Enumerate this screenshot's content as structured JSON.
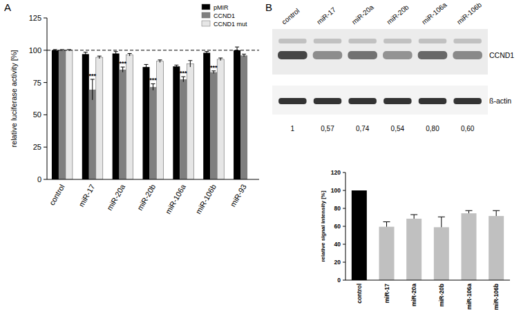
{
  "panels": [
    "A",
    "B"
  ],
  "chart_data": [
    {
      "type": "bar",
      "y_label": "relative luciferase activity [%]",
      "categories": [
        "control",
        "miR-17",
        "miR-20a",
        "miR-20b",
        "miR-106a",
        "miR-106b",
        "miR-93"
      ],
      "series": [
        {
          "name": "pMIR",
          "color": "#000000",
          "values": [
            100,
            97,
            97.5,
            87,
            87.5,
            98,
            100
          ],
          "errors": [
            0.5,
            1.5,
            1.5,
            2,
            1,
            1,
            2.5
          ]
        },
        {
          "name": "CCND1",
          "color": "#7f7f7f",
          "values": [
            100,
            69.5,
            85,
            71.5,
            77.5,
            83,
            96
          ],
          "errors": [
            0.5,
            8,
            2,
            2.5,
            2,
            1,
            1
          ],
          "annotations": [
            null,
            "***",
            "***",
            "***",
            "***",
            "***",
            null
          ]
        },
        {
          "name": "CCND1 mut",
          "color": "#e6e6e6",
          "values": [
            100,
            94.5,
            96.5,
            91.5,
            89.5,
            93,
            null
          ],
          "errors": [
            0.5,
            1,
            1,
            1,
            2.5,
            1,
            null
          ]
        }
      ],
      "ylim": [
        0,
        125
      ],
      "yticks": [
        0,
        25,
        50,
        75,
        100,
        125
      ],
      "reference_line": 100,
      "grid": false,
      "legend": "upper right"
    },
    {
      "type": "bar",
      "y_label": "relative signal intensity [%]",
      "categories": [
        "control",
        "miR-17",
        "miR-20a",
        "miR-20b",
        "miR-106a",
        "miR-106b"
      ],
      "values": [
        100,
        59.5,
        68.5,
        59,
        74.5,
        71.5
      ],
      "errors": [
        null,
        5.5,
        4.5,
        11.5,
        3,
        6
      ],
      "colors": [
        "#000000",
        "#c0c0c0",
        "#c0c0c0",
        "#c0c0c0",
        "#c0c0c0",
        "#c0c0c0"
      ],
      "ylim": [
        0,
        120
      ],
      "yticks": [
        0,
        20,
        40,
        60,
        80,
        100,
        120
      ],
      "grid": false
    }
  ],
  "blot": {
    "lanes": [
      "control",
      "miR-17",
      "miR-20a",
      "miR-20b",
      "miR-106a",
      "miR-106b"
    ],
    "rows": [
      "CCND1",
      "ß-actin"
    ],
    "quantification": [
      1,
      {
        "value": 0.57,
        "label": "0,57"
      },
      {
        "value": 0.74,
        "label": "0,74"
      },
      {
        "value": 0.54,
        "label": "0,54"
      },
      {
        "value": 0.8,
        "label": "0,80"
      },
      {
        "value": 0.6,
        "label": "0,60"
      }
    ]
  }
}
